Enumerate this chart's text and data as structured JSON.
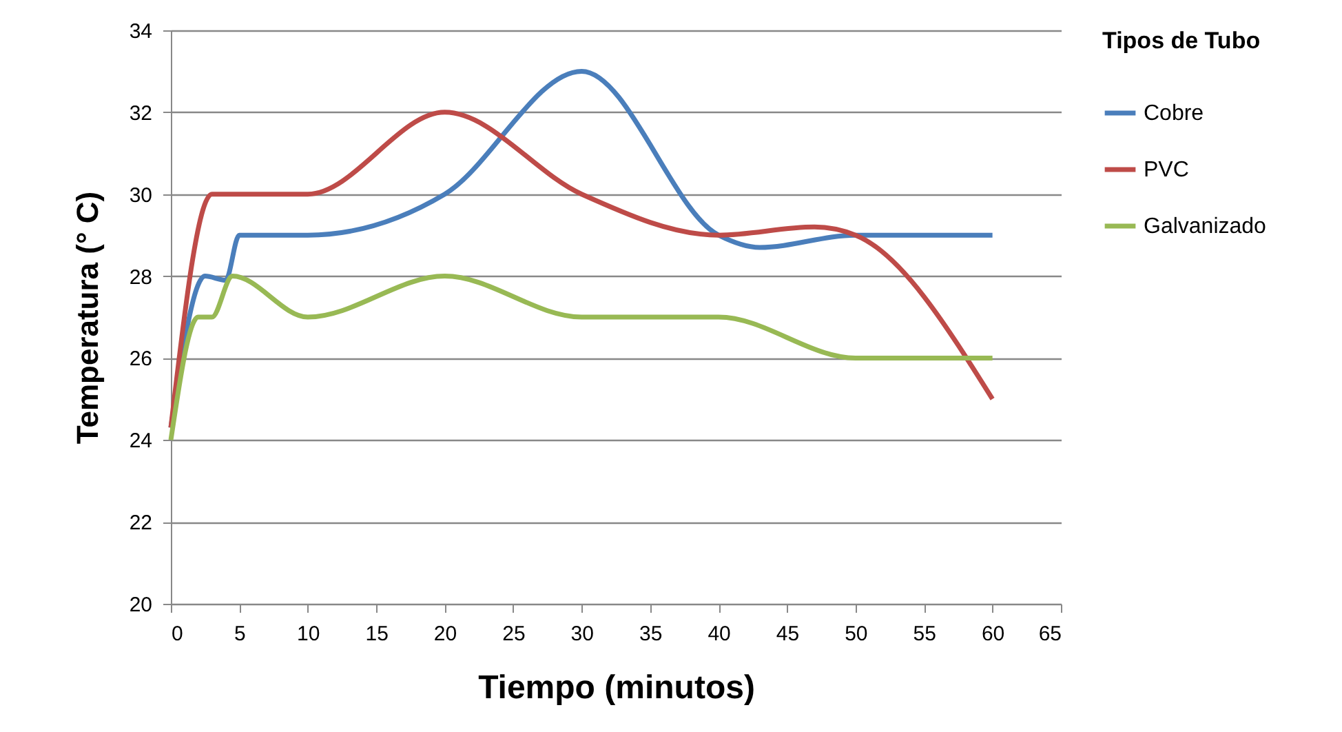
{
  "chart_data": {
    "type": "line",
    "xlabel": "Tiempo (minutos)",
    "ylabel": "Temperatura (° C)",
    "legend_title": "Tipos de Tubo",
    "xlim": [
      0,
      65
    ],
    "xticks": [
      0,
      5,
      10,
      15,
      20,
      25,
      30,
      35,
      40,
      45,
      50,
      55,
      60,
      65
    ],
    "ylim": [
      20,
      34
    ],
    "yticks": [
      20,
      22,
      24,
      26,
      28,
      30,
      32,
      34
    ],
    "grid": "y",
    "legend": "right",
    "marker": "none",
    "line_style": "solid",
    "series": [
      {
        "name": "Cobre",
        "color": "#4a7ebb",
        "x": [
          0,
          2.5,
          4,
          5,
          10,
          20,
          30,
          40,
          43,
          50,
          60
        ],
        "values": [
          24.3,
          28,
          27.9,
          29,
          29,
          30,
          33,
          29,
          28.7,
          29,
          29
        ]
      },
      {
        "name": "PVC",
        "color": "#be4b48",
        "x": [
          0,
          3,
          5,
          10,
          20,
          30,
          40,
          47,
          50,
          60
        ],
        "values": [
          24.3,
          30,
          30,
          30,
          32,
          30,
          29,
          29.2,
          29,
          25
        ]
      },
      {
        "name": "Galvanizado",
        "color": "#98b954",
        "x": [
          0,
          2,
          3,
          4.5,
          10,
          20,
          30,
          40,
          50,
          60
        ],
        "values": [
          24,
          27,
          27,
          28,
          27,
          28,
          27,
          27,
          26,
          26
        ]
      }
    ]
  }
}
